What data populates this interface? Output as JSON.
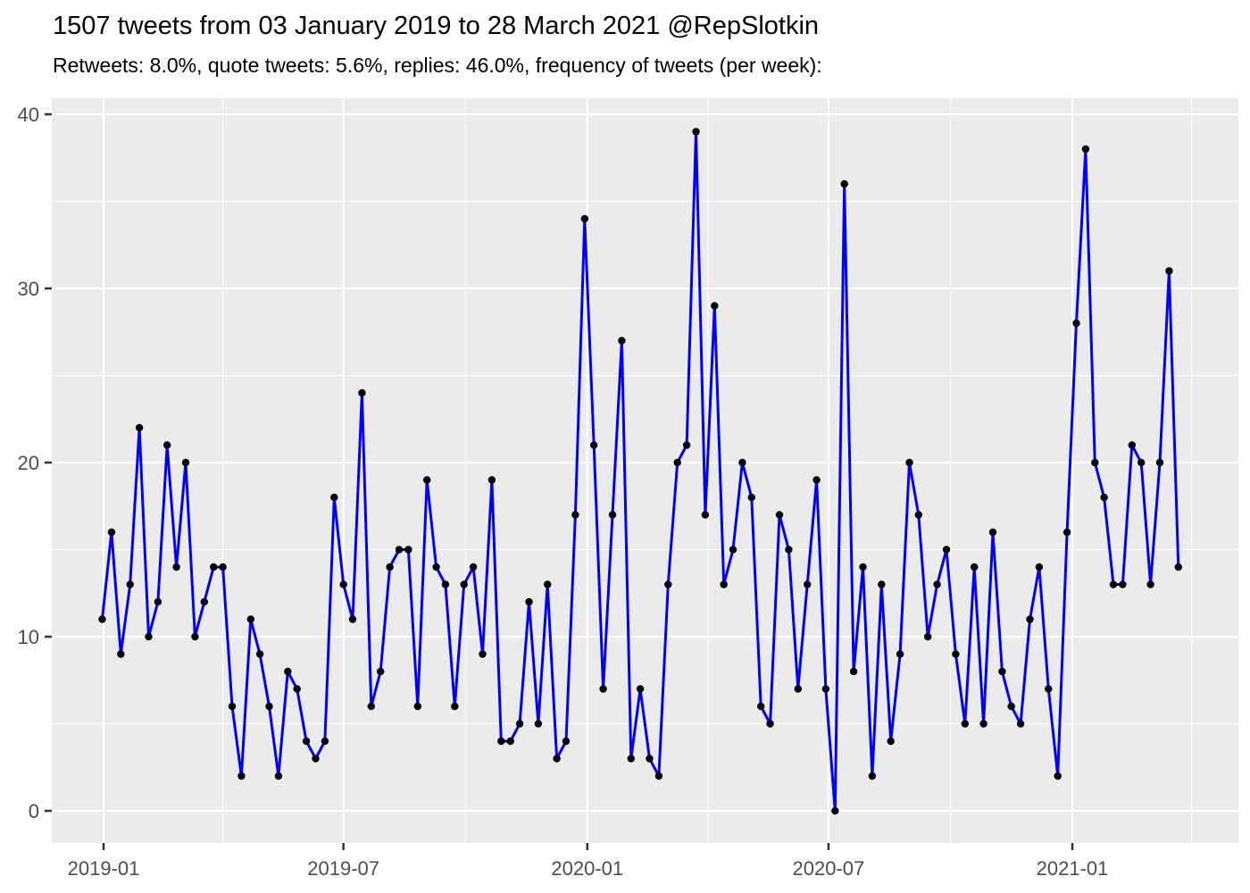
{
  "title": "1507 tweets from 03 January 2019 to 28 March 2021 @RepSlotkin",
  "subtitle": "Retweets: 8.0%, quote tweets: 5.6%, replies: 46.0%, frequency of tweets (per week):",
  "handle": "@RepSlotkin",
  "stats": {
    "total_tweets": 1507,
    "date_from": "03 January 2019",
    "date_to": "28 March 2021",
    "retweets_pct": "8.0%",
    "quote_tweets_pct": "5.6%",
    "replies_pct": "46.0%"
  },
  "chart_data": {
    "type": "line",
    "title": "1507 tweets from 03 January 2019 to 28 March 2021 @RepSlotkin",
    "subtitle": "Retweets: 8.0%, quote tweets: 5.6%, replies: 46.0%, frequency of tweets (per week):",
    "xlabel": "",
    "ylabel": "",
    "ylim": [
      0,
      40
    ],
    "grid": "on",
    "legend": "none",
    "x_unit": "week",
    "x_first_week_start": "2018-12-31",
    "x_last_week_start": "2021-03-22",
    "x_tick_labels": [
      "2019-01",
      "2019-07",
      "2020-01",
      "2020-07",
      "2021-01"
    ],
    "x_tick_dates": [
      "2019-01-01",
      "2019-07-01",
      "2020-01-01",
      "2020-07-01",
      "2021-01-01"
    ],
    "x_minor_tick_dates": [
      "2019-04-01",
      "2019-10-01",
      "2020-04-01",
      "2020-10-01",
      "2021-04-01"
    ],
    "y_tick_labels": [
      "0",
      "10",
      "20",
      "30",
      "40"
    ],
    "y_major_ticks": [
      0,
      10,
      20,
      30,
      40
    ],
    "y_minor_ticks": [
      5,
      15,
      25,
      35
    ],
    "series": [
      {
        "name": "tweets per week",
        "line_color": "#0000FF",
        "point_color": "#000000",
        "values": [
          11,
          16,
          9,
          13,
          22,
          10,
          12,
          21,
          14,
          20,
          10,
          12,
          14,
          14,
          6,
          2,
          11,
          9,
          6,
          2,
          8,
          7,
          4,
          3,
          4,
          18,
          13,
          11,
          24,
          6,
          8,
          14,
          15,
          15,
          6,
          19,
          14,
          13,
          6,
          13,
          14,
          9,
          19,
          4,
          4,
          5,
          12,
          5,
          13,
          3,
          4,
          17,
          34,
          21,
          7,
          17,
          27,
          3,
          7,
          3,
          2,
          13,
          20,
          21,
          39,
          17,
          29,
          13,
          15,
          20,
          18,
          6,
          5,
          17,
          15,
          7,
          13,
          19,
          7,
          0,
          36,
          8,
          14,
          2,
          13,
          4,
          9,
          20,
          17,
          10,
          13,
          15,
          9,
          5,
          14,
          5,
          16,
          8,
          6,
          5,
          11,
          14,
          7,
          2,
          16,
          28,
          38,
          20,
          18,
          13,
          13,
          21,
          20,
          13,
          20,
          31,
          14
        ]
      }
    ],
    "style": {
      "panel_bg": "#EBEBEB",
      "grid_major_color": "#FFFFFF",
      "grid_minor_color": "#FFFFFF",
      "axis_text_color": "#4D4D4D",
      "tick_mark_color": "#333333",
      "title_color": "#000000",
      "outer_bg": "#FFFFFF"
    }
  }
}
